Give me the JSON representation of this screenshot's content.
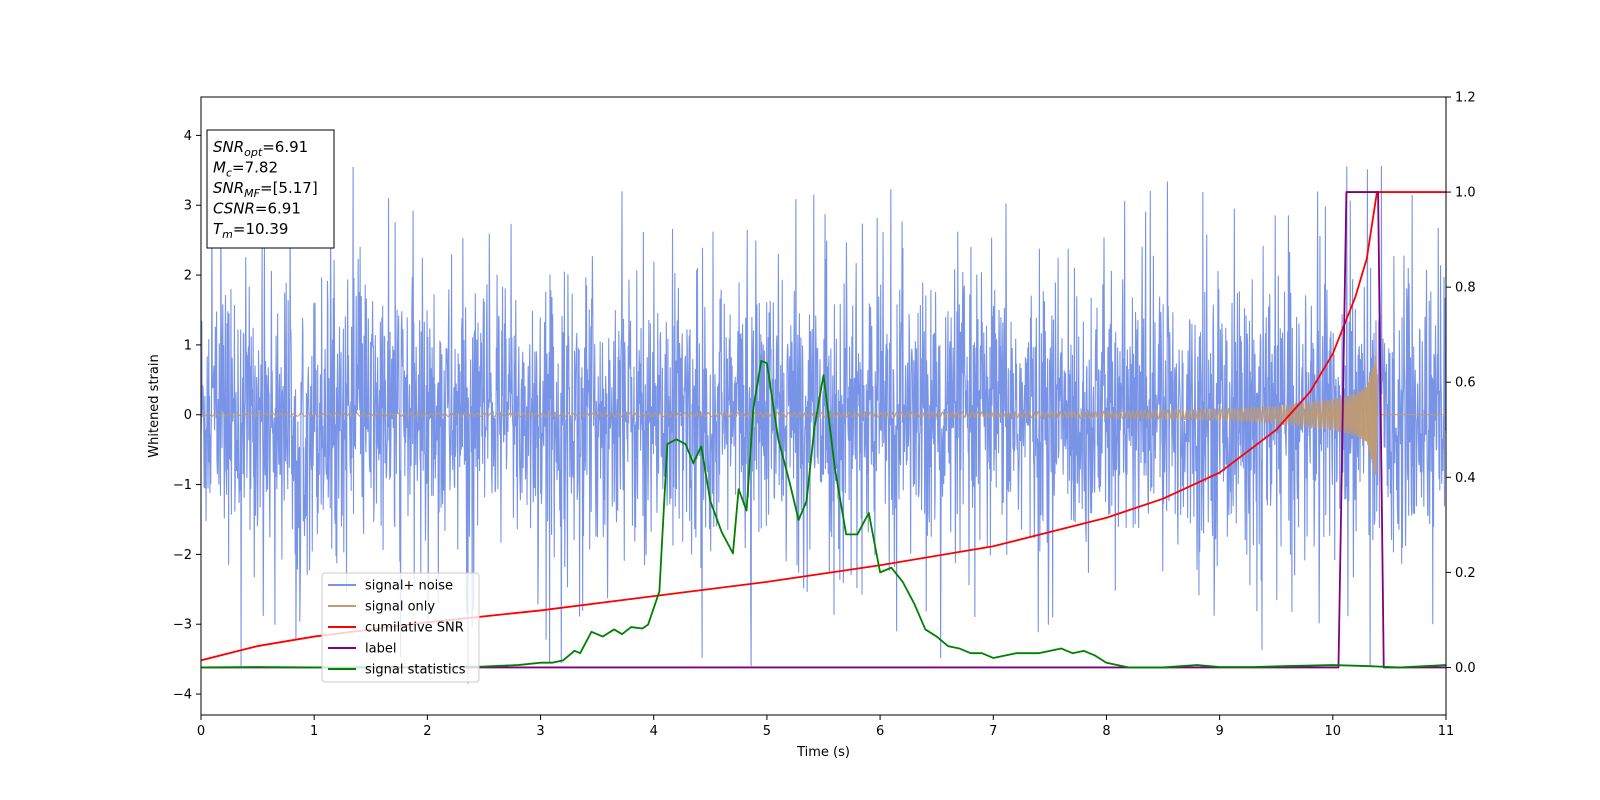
{
  "chart_data": {
    "type": "line",
    "xlabel": "Time (s)",
    "ylabel": "Whitened strain",
    "ylabel_right": "",
    "xlim": [
      0,
      11
    ],
    "ylim": [
      -4.3,
      4.55
    ],
    "ylim_right": [
      -0.1,
      1.2
    ],
    "x_ticks": [
      "0",
      "1",
      "2",
      "3",
      "4",
      "5",
      "6",
      "7",
      "8",
      "9",
      "10",
      "11"
    ],
    "y_ticks": [
      "−4",
      "−3",
      "−2",
      "−1",
      "0",
      "1",
      "2",
      "3",
      "4"
    ],
    "y_tick_values": [
      -4,
      -3,
      -2,
      -1,
      0,
      1,
      2,
      3,
      4
    ],
    "y2_ticks": [
      "0.0",
      "0.2",
      "0.4",
      "0.6",
      "0.8",
      "1.0",
      "1.2"
    ],
    "y2_tick_values": [
      0.0,
      0.2,
      0.4,
      0.6,
      0.8,
      1.0,
      1.2
    ],
    "grid": false,
    "legend_position": "lower-left",
    "info_box": {
      "position": "top-left",
      "lines": [
        {
          "base": "SNR",
          "sub": "opt",
          "value": "=6.91"
        },
        {
          "base": "M",
          "sub": "c",
          "value": "=7.82"
        },
        {
          "base": "SNR",
          "sub": "MF",
          "value": "=[5.17]"
        },
        {
          "base": "CSNR",
          "sub": "",
          "value": "=6.91"
        },
        {
          "base": "T",
          "sub": "m",
          "value": "=10.39"
        }
      ]
    },
    "series": [
      {
        "name": "signal+ noise",
        "axis": "left",
        "color": "#7994e6",
        "kind": "noise",
        "noise_band": [
          -1.7,
          1.7
        ],
        "noise_extreme": [
          -3.9,
          3.7
        ],
        "overlay_chirp": true
      },
      {
        "name": "signal only",
        "axis": "left",
        "color": "#c09a72",
        "kind": "chirp",
        "t_merge": 10.39,
        "amplitude_at": [
          [
            0,
            0.02
          ],
          [
            5,
            0.03
          ],
          [
            7,
            0.04
          ],
          [
            8,
            0.05
          ],
          [
            9,
            0.08
          ],
          [
            9.5,
            0.12
          ],
          [
            10,
            0.22
          ],
          [
            10.2,
            0.3
          ],
          [
            10.3,
            0.4
          ],
          [
            10.39,
            0.95
          ]
        ]
      },
      {
        "name": "cumilative SNR",
        "axis": "right",
        "color": "#ff0000",
        "kind": "line",
        "x": [
          0,
          0.5,
          1,
          2,
          3,
          4,
          5,
          6,
          7,
          8,
          8.5,
          9,
          9.5,
          9.8,
          10,
          10.2,
          10.3,
          10.39,
          11
        ],
        "y": [
          0.015,
          0.045,
          0.065,
          0.095,
          0.12,
          0.15,
          0.18,
          0.215,
          0.255,
          0.315,
          0.355,
          0.41,
          0.5,
          0.58,
          0.66,
          0.78,
          0.86,
          1.0,
          1.0
        ]
      },
      {
        "name": "label",
        "axis": "right",
        "color": "#800080",
        "kind": "line",
        "x": [
          0,
          10.05,
          10.12,
          10.4,
          10.45,
          11
        ],
        "y": [
          0,
          0,
          1,
          1,
          0,
          0
        ]
      },
      {
        "name": "signal statistics",
        "axis": "right",
        "color": "#008000",
        "kind": "line",
        "x": [
          0,
          0.5,
          1,
          2,
          2.5,
          2.8,
          3.0,
          3.1,
          3.2,
          3.3,
          3.35,
          3.45,
          3.55,
          3.65,
          3.72,
          3.8,
          3.9,
          3.95,
          4.0,
          4.05,
          4.12,
          4.2,
          4.28,
          4.35,
          4.42,
          4.5,
          4.6,
          4.7,
          4.75,
          4.82,
          4.88,
          4.95,
          5.0,
          5.1,
          5.2,
          5.28,
          5.35,
          5.42,
          5.5,
          5.6,
          5.7,
          5.75,
          5.8,
          5.9,
          6.0,
          6.1,
          6.2,
          6.3,
          6.4,
          6.5,
          6.6,
          6.7,
          6.8,
          6.9,
          7.0,
          7.2,
          7.4,
          7.5,
          7.6,
          7.7,
          7.8,
          7.9,
          8.0,
          8.2,
          8.5,
          8.8,
          9.0,
          9.3,
          9.6,
          10.0,
          10.3,
          10.6,
          11.0
        ],
        "y": [
          0.0,
          0.001,
          0.0,
          0.001,
          0.002,
          0.005,
          0.01,
          0.01,
          0.015,
          0.035,
          0.03,
          0.075,
          0.065,
          0.08,
          0.07,
          0.085,
          0.082,
          0.09,
          0.125,
          0.16,
          0.47,
          0.48,
          0.47,
          0.43,
          0.465,
          0.35,
          0.285,
          0.24,
          0.375,
          0.33,
          0.545,
          0.645,
          0.64,
          0.48,
          0.39,
          0.31,
          0.35,
          0.505,
          0.615,
          0.42,
          0.28,
          0.28,
          0.28,
          0.325,
          0.2,
          0.21,
          0.18,
          0.135,
          0.08,
          0.065,
          0.045,
          0.04,
          0.03,
          0.03,
          0.02,
          0.03,
          0.03,
          0.035,
          0.04,
          0.03,
          0.035,
          0.025,
          0.01,
          0.0,
          0.0,
          0.005,
          0.001,
          0.001,
          0.003,
          0.005,
          0.003,
          0.0,
          0.005
        ]
      }
    ]
  }
}
